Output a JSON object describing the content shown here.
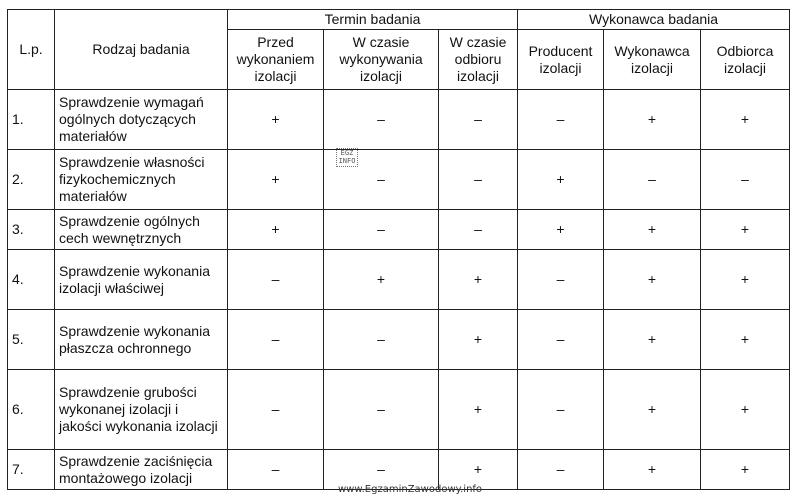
{
  "header": {
    "lp": "L.p.",
    "rodzaj": "Rodzaj badania",
    "termin": "Termin badania",
    "wykonawca": "Wykonawca badania",
    "termin_cols": [
      "Przed wykonaniem izolacji",
      "W czasie wykonywania izolacji",
      "W czasie odbioru izolacji"
    ],
    "wykonawca_cols": [
      "Producent izolacji",
      "Wykonawca izolacji",
      "Odbiorca izolacji"
    ]
  },
  "rows": [
    {
      "lp": "1.",
      "name": "Sprawdzenie wymagań ogólnych dotyczących materiałów",
      "marks": [
        "+",
        "–",
        "–",
        "–",
        "+",
        "+"
      ]
    },
    {
      "lp": "2.",
      "name": "Sprawdzenie własności fizykochemicznych materiałów",
      "marks": [
        "+",
        "–",
        "–",
        "+",
        "–",
        "–"
      ]
    },
    {
      "lp": "3.",
      "name": "Sprawdzenie ogólnych cech wewnętrznych",
      "marks": [
        "+",
        "–",
        "–",
        "+",
        "+",
        "+"
      ]
    },
    {
      "lp": "4.",
      "name": "Sprawdzenie wykonania izolacji właściwej",
      "marks": [
        "–",
        "+",
        "+",
        "–",
        "+",
        "+"
      ]
    },
    {
      "lp": "5.",
      "name": "Sprawdzenie wykonania płaszcza ochronnego",
      "marks": [
        "–",
        "–",
        "+",
        "–",
        "+",
        "+"
      ]
    },
    {
      "lp": "6.",
      "name": "Sprawdzenie grubości wykonanej izolacji i jakości wykonania izolacji",
      "marks": [
        "–",
        "–",
        "+",
        "–",
        "+",
        "+"
      ]
    },
    {
      "lp": "7.",
      "name": "Sprawdzenie zaciśnięcia montażowego izolacji",
      "marks": [
        "–",
        "–",
        "+",
        "–",
        "+",
        "+"
      ]
    }
  ],
  "watermark": "EGZ INFO",
  "footer": "www.EgzaminZawodowy.info"
}
